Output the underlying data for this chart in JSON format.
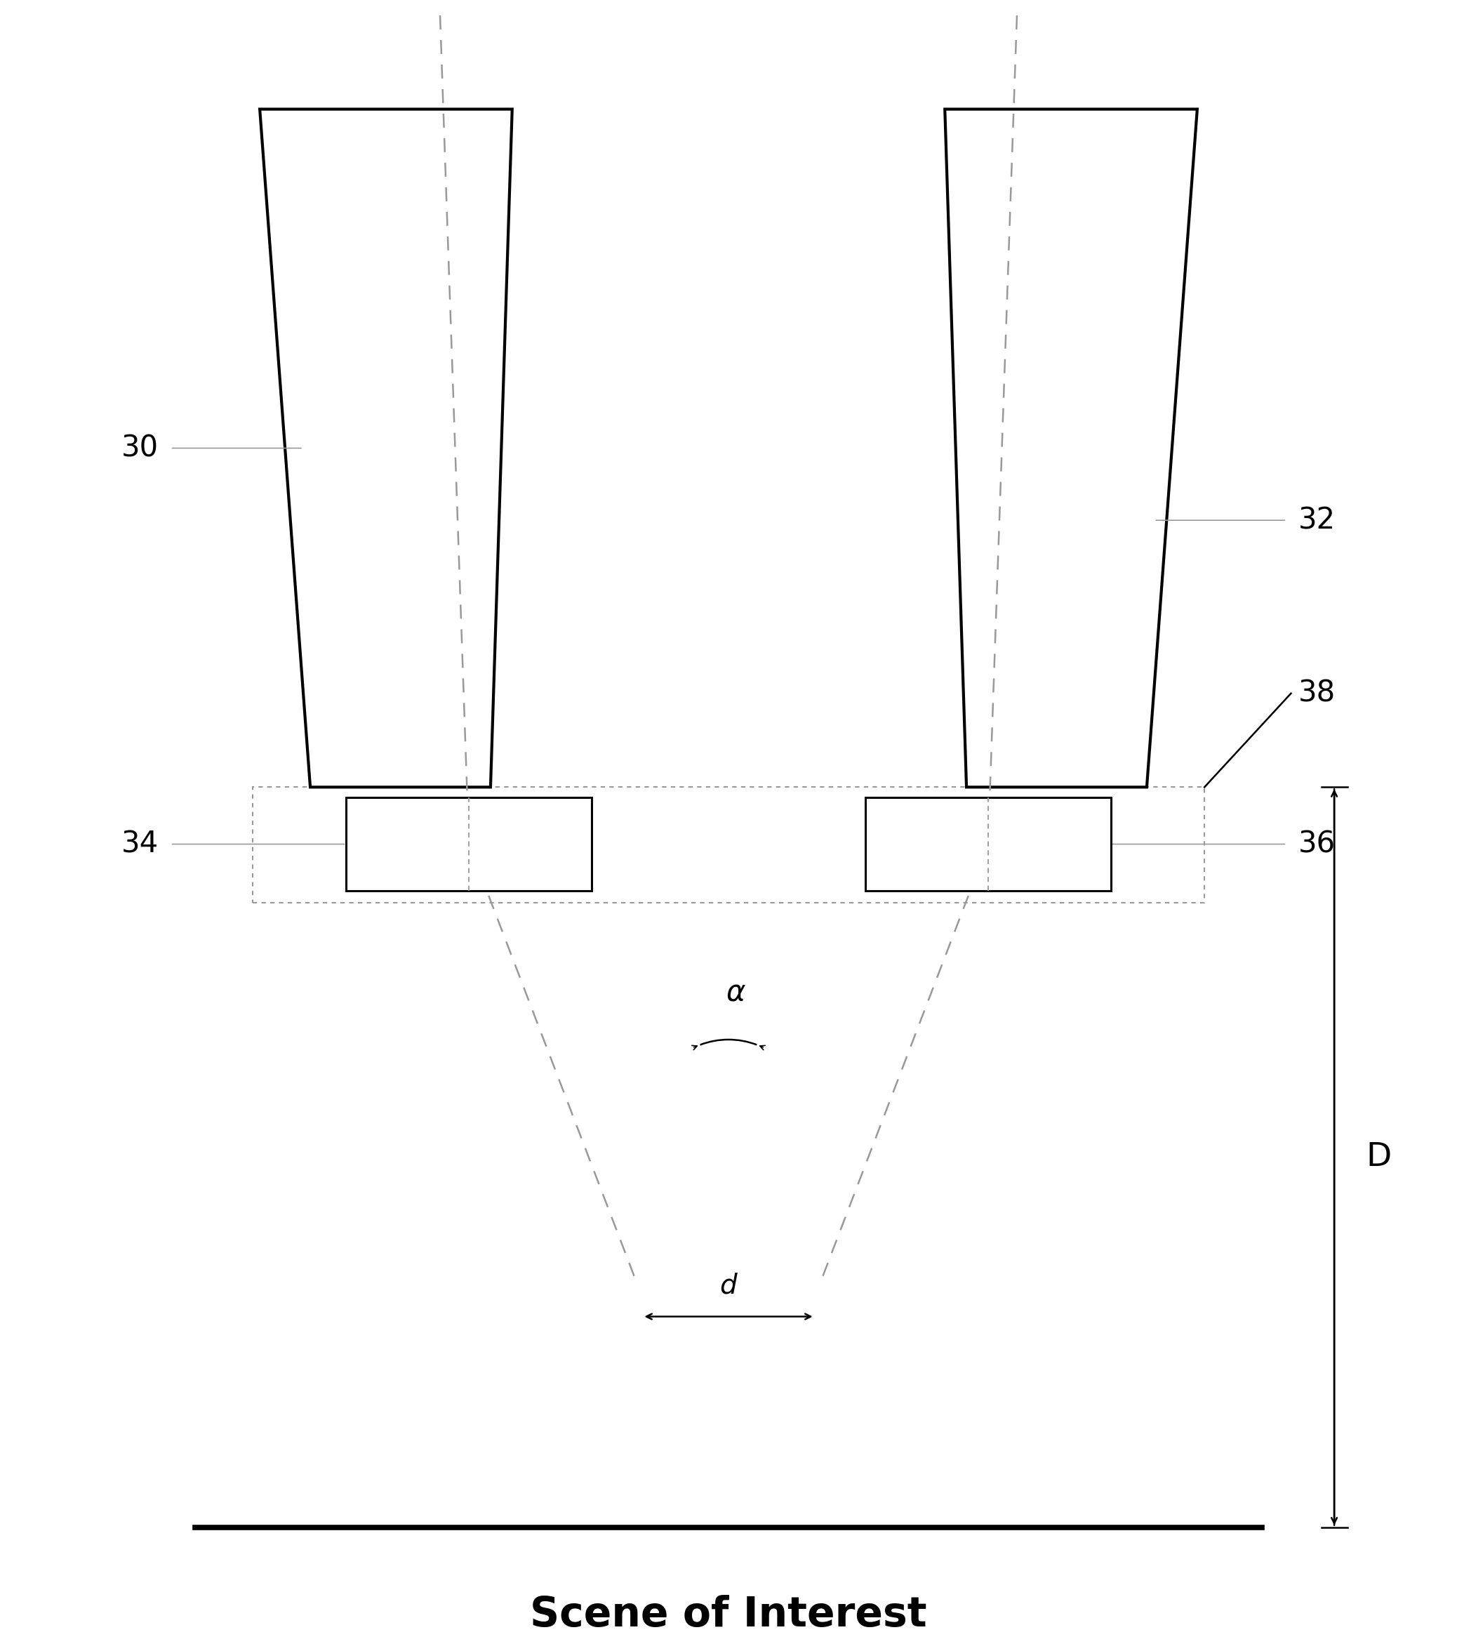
{
  "fig_width": 20.76,
  "fig_height": 23.42,
  "bg_color": "#ffffff",
  "label_30": "30",
  "label_32": "32",
  "label_34": "34",
  "label_36": "36",
  "label_38": "38",
  "label_alpha": "α",
  "label_d": "d",
  "label_D": "D",
  "scene_label": "Scene of Interest",
  "line_color": "#000000",
  "dashed_color": "#999999",
  "dotted_box_color": "#999999"
}
